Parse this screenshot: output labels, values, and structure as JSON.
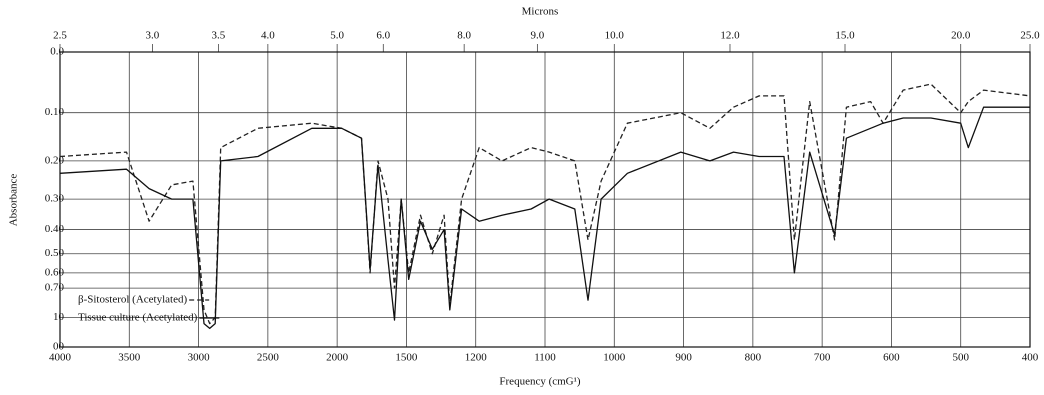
{
  "chart_data": {
    "type": "line",
    "x2label": "Microns",
    "ylabel": "Absorbance",
    "xlabel": "Frequency (cmG¹)",
    "grid": true,
    "legend": "lower left",
    "xlim": [
      4000,
      400
    ],
    "xticks": [
      4000,
      3500,
      3000,
      2500,
      2000,
      1500,
      1200,
      1100,
      1000,
      900,
      800,
      700,
      600,
      500,
      400
    ],
    "x2ticks": [
      {
        "value": 4000,
        "label": "2.5"
      },
      {
        "value": 3333,
        "label": "3.0"
      },
      {
        "value": 2857,
        "label": "3.5"
      },
      {
        "value": 2500,
        "label": "4.0"
      },
      {
        "value": 2000,
        "label": "5.0"
      },
      {
        "value": 1667,
        "label": "6.0"
      },
      {
        "value": 1250,
        "label": "8.0"
      },
      {
        "value": 1111,
        "label": "9.0"
      },
      {
        "value": 1000,
        "label": "10.0"
      },
      {
        "value": 833,
        "label": "12.0"
      },
      {
        "value": 667,
        "label": "15.0"
      },
      {
        "value": 500,
        "label": "20.0"
      },
      {
        "value": 400,
        "label": "25.0"
      }
    ],
    "ylim": [
      0,
      null
    ],
    "yticks": [
      {
        "value": 0,
        "label": "0.0"
      },
      {
        "value": 0.1,
        "label": "0.10"
      },
      {
        "value": 0.2,
        "label": "0.20"
      },
      {
        "value": 0.3,
        "label": "0.30"
      },
      {
        "value": 0.4,
        "label": "0.40"
      },
      {
        "value": 0.5,
        "label": "0.50"
      },
      {
        "value": 0.6,
        "label": "0.60"
      },
      {
        "value": 0.7,
        "label": "0.70"
      },
      {
        "value": 1.0,
        "label": "10"
      },
      {
        "value": null,
        "label": "00"
      }
    ],
    "x": [
      4000,
      3520,
      3357,
      3194,
      3041,
      2961,
      2920,
      2880,
      2840,
      2572,
      2183,
      1967,
      1824,
      1762,
      1705,
      1633,
      1586,
      1538,
      1490,
      1439,
      1388,
      1337,
      1312,
      1261,
      1195,
      1162,
      1120,
      1094,
      1057,
      1038,
      1019,
      981,
      904,
      862,
      828,
      791,
      755,
      740,
      718,
      682,
      665,
      630,
      612,
      583,
      543,
      500,
      489,
      467,
      400
    ],
    "series": [
      {
        "name": "β-Sitosterol (Acetylated)",
        "color": "#222222",
        "dash": "5,3",
        "values": [
          0.19,
          0.18,
          0.37,
          0.26,
          0.25,
          0.9,
          1.1,
          1.0,
          0.17,
          0.13,
          0.12,
          0.13,
          0.15,
          0.6,
          0.2,
          0.3,
          0.7,
          0.3,
          0.6,
          0.35,
          0.5,
          0.35,
          0.85,
          0.3,
          0.17,
          0.2,
          0.17,
          0.18,
          0.2,
          0.44,
          0.25,
          0.12,
          0.1,
          0.13,
          0.09,
          0.07,
          0.07,
          0.44,
          0.08,
          0.44,
          0.09,
          0.08,
          0.12,
          0.06,
          0.05,
          0.1,
          0.08,
          0.06,
          0.07
        ]
      },
      {
        "name": "Tissue culture (Acetylated)",
        "color": "#111111",
        "dash": "none",
        "values": [
          0.23,
          0.22,
          0.27,
          0.3,
          0.3,
          1.1,
          1.2,
          1.1,
          0.2,
          0.19,
          0.13,
          0.13,
          0.15,
          0.58,
          0.21,
          0.53,
          1.04,
          0.3,
          0.64,
          0.37,
          0.48,
          0.4,
          0.9,
          0.33,
          0.37,
          0.35,
          0.33,
          0.3,
          0.33,
          0.8,
          0.3,
          0.23,
          0.18,
          0.2,
          0.18,
          0.19,
          0.19,
          0.6,
          0.18,
          0.42,
          0.15,
          0.13,
          0.12,
          0.11,
          0.11,
          0.12,
          0.17,
          0.09,
          0.09
        ]
      }
    ]
  }
}
